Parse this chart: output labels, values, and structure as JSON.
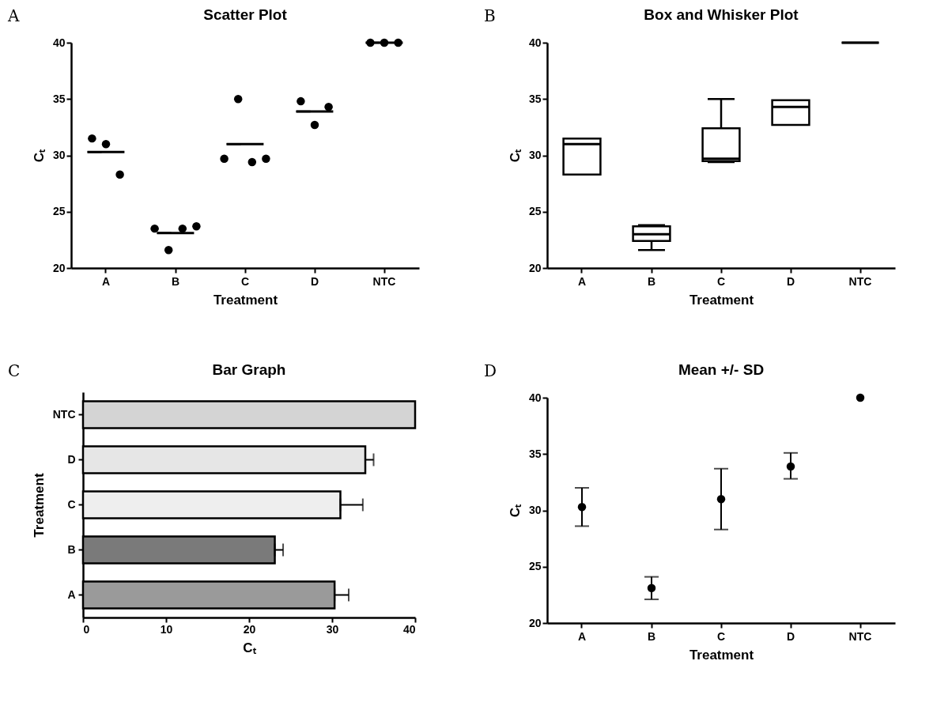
{
  "chart_data": [
    {
      "type": "scatter",
      "title": "Scatter Plot",
      "xlabel": "Treatment",
      "ylabel": "Cₜ",
      "annotations": [
        "A"
      ],
      "categories": [
        "A",
        "B",
        "C",
        "D",
        "NTC"
      ],
      "ylim": [
        20,
        40
      ],
      "yticks": [
        20,
        25,
        30,
        35,
        40
      ],
      "series": [
        {
          "type": "scatter",
          "marker": "circle",
          "color": "#000000",
          "x": [
            "A",
            "A",
            "A",
            "B",
            "B",
            "B",
            "B",
            "C",
            "C",
            "C",
            "C",
            "D",
            "D",
            "D",
            "NTC",
            "NTC",
            "NTC"
          ],
          "values": [
            31.5,
            31.0,
            28.3,
            23.5,
            21.6,
            23.5,
            23.7,
            29.7,
            35.0,
            29.4,
            29.7,
            34.8,
            32.7,
            34.3,
            40,
            40,
            40
          ]
        },
        {
          "type": "box",
          "color": "#000000",
          "boxes": [
            {
              "low": 30.3,
              "q1": 30.3,
              "median": 30.3,
              "q3": 30.3,
              "high": 30.3
            },
            {
              "low": 23.1,
              "q1": 23.1,
              "median": 23.1,
              "q3": 23.1,
              "high": 23.1
            },
            {
              "low": 31.0,
              "q1": 31.0,
              "median": 31.0,
              "q3": 31.0,
              "high": 31.0
            },
            {
              "low": 33.9,
              "q1": 33.9,
              "median": 33.9,
              "q3": 33.9,
              "high": 33.9
            },
            {
              "low": 40,
              "q1": 40,
              "median": 40,
              "q3": 40,
              "high": 40
            }
          ]
        }
      ]
    },
    {
      "type": "box",
      "title": "Box and Whisker Plot",
      "xlabel": "Treatment",
      "ylabel": "Cₜ",
      "annotations": [
        "B"
      ],
      "categories": [
        "A",
        "B",
        "C",
        "D",
        "NTC"
      ],
      "ylim": [
        20,
        40
      ],
      "yticks": [
        20,
        25,
        30,
        35,
        40
      ],
      "boxes": [
        {
          "low": 28.3,
          "q1": 28.3,
          "median": 31.0,
          "q3": 31.5,
          "high": 31.5
        },
        {
          "low": 21.6,
          "q1": 22.4,
          "median": 23.0,
          "q3": 23.7,
          "high": 23.8
        },
        {
          "low": 29.4,
          "q1": 29.5,
          "median": 29.7,
          "q3": 32.4,
          "high": 35.0
        },
        {
          "low": 32.7,
          "q1": 32.7,
          "median": 34.3,
          "q3": 34.9,
          "high": 34.9
        },
        {
          "low": 40,
          "q1": 40,
          "median": 40,
          "q3": 40,
          "high": 40
        }
      ]
    },
    {
      "type": "bar",
      "orientation": "horizontal",
      "title": "Bar Graph",
      "xlabel": "Cₜ",
      "ylabel": "Treatment",
      "annotations": [
        "C"
      ],
      "categories": [
        "NTC",
        "D",
        "C",
        "B",
        "A"
      ],
      "values": [
        40,
        34.0,
        31.0,
        23.1,
        30.3
      ],
      "errors": [
        null,
        [
          34.0,
          35.0
        ],
        [
          31.0,
          33.7
        ],
        [
          23.1,
          24.1
        ],
        [
          30.3,
          32.0
        ]
      ],
      "colors": [
        "#d4d4d4",
        "#e6e6e6",
        "#eeeeee",
        "#7a7a7a",
        "#9a9a9a"
      ],
      "xlim": [
        0,
        40
      ],
      "xticks": [
        0,
        10,
        20,
        30,
        40
      ]
    },
    {
      "type": "scatter",
      "title": "Mean +/- SD",
      "xlabel": "Treatment",
      "ylabel": "Cₜ",
      "annotations": [
        "D"
      ],
      "categories": [
        "A",
        "B",
        "C",
        "D",
        "NTC"
      ],
      "ylim": [
        20,
        40
      ],
      "yticks": [
        20,
        25,
        30,
        35,
        40
      ],
      "marker": "circle",
      "color": "#000000",
      "values": [
        30.3,
        23.1,
        31.0,
        33.9,
        40
      ],
      "errors": [
        [
          28.6,
          32.0
        ],
        [
          22.1,
          24.1
        ],
        [
          28.3,
          33.7
        ],
        [
          32.8,
          35.1
        ],
        null
      ]
    }
  ]
}
